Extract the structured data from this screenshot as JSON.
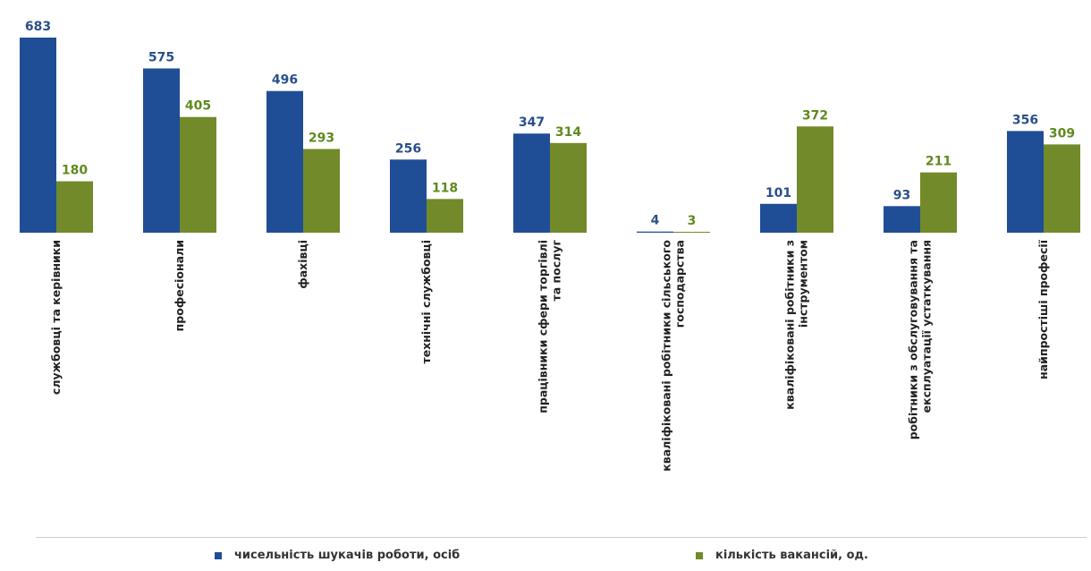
{
  "chart_data": {
    "type": "bar",
    "categories": [
      [
        "службовці та керівники"
      ],
      [
        "професіонали"
      ],
      [
        "фахівці"
      ],
      [
        "технічні службовці"
      ],
      [
        "працівники сфери торгівлі",
        "та послуг"
      ],
      [
        "кваліфіковані робітники сільського",
        "господарства"
      ],
      [
        "кваліфіковані робітники з",
        "інструментом"
      ],
      [
        "робітники з обслуговування та",
        "експлуатації устаткування"
      ],
      [
        "найпростіші професії"
      ]
    ],
    "series": [
      {
        "name": "чисельність шукачів роботи, осіб",
        "color": "#1f4e96",
        "label_color": "#2a4f8a",
        "values": [
          683,
          575,
          496,
          256,
          347,
          4,
          101,
          93,
          356
        ]
      },
      {
        "name": "кількість вакансій, од.",
        "color": "#728a2a",
        "label_color": "#5f8a1e",
        "values": [
          180,
          405,
          293,
          118,
          314,
          3,
          372,
          211,
          309
        ]
      }
    ],
    "ylim": [
      0,
      683
    ],
    "legend_position": "bottom",
    "grid": false
  }
}
